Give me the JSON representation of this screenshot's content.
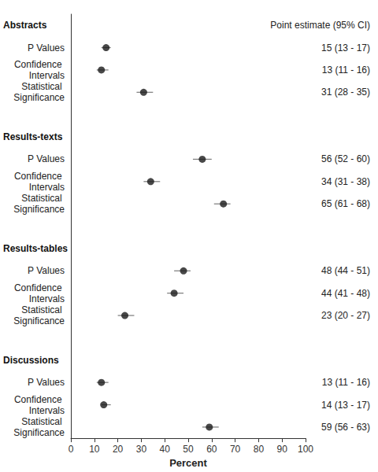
{
  "chart_data": {
    "type": "forest",
    "xlabel": "Percent",
    "ci_header": "Point estimate (95% CI)",
    "xlim": [
      0,
      100
    ],
    "xticks": [
      0,
      10,
      20,
      30,
      40,
      50,
      60,
      70,
      80,
      90,
      100
    ],
    "grid": false,
    "color": "#1a1a1a",
    "marker": "circle",
    "groups": [
      {
        "title": "Abstracts",
        "categories": [
          "P Values",
          "Confidence Intervals",
          "Statistical Significance"
        ],
        "values": [
          15,
          13,
          31
        ],
        "lower": [
          13,
          11,
          28
        ],
        "upper": [
          17,
          16,
          35
        ],
        "value_labels": [
          "15 (13 - 17)",
          "13 (11 - 16)",
          "31 (28 - 35)"
        ]
      },
      {
        "title": "Results-texts",
        "categories": [
          "P Values",
          "Confidence Intervals",
          "Statistical Significance"
        ],
        "values": [
          56,
          34,
          65
        ],
        "lower": [
          52,
          31,
          61
        ],
        "upper": [
          60,
          38,
          68
        ],
        "value_labels": [
          "56 (52 - 60)",
          "34 (31 - 38)",
          "65 (61 - 68)"
        ]
      },
      {
        "title": "Results-tables",
        "categories": [
          "P Values",
          "Confidence Intervals",
          "Statistical Significance"
        ],
        "values": [
          48,
          44,
          23
        ],
        "lower": [
          44,
          41,
          20
        ],
        "upper": [
          51,
          48,
          27
        ],
        "value_labels": [
          "48 (44 - 51)",
          "44 (41 - 48)",
          "23 (20 - 27)"
        ]
      },
      {
        "title": "Discussions",
        "categories": [
          "P Values",
          "Confidence Intervals",
          "Statistical Significance"
        ],
        "values": [
          13,
          14,
          59
        ],
        "lower": [
          11,
          13,
          56
        ],
        "upper": [
          16,
          17,
          63
        ],
        "value_labels": [
          "13 (11 - 16)",
          "14 (13 - 17)",
          "59 (56 - 63)"
        ]
      }
    ]
  }
}
